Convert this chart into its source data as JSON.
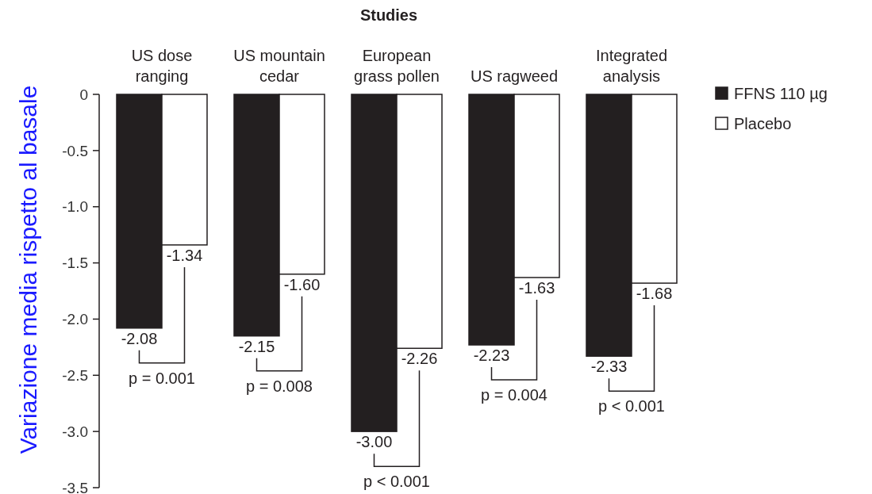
{
  "chart_data": {
    "type": "bar",
    "title": "Studies",
    "ylabel": "Variazione media rispetto al basale",
    "categories": [
      "US dose ranging",
      "US mountain cedar",
      "European grass pollen",
      "US ragweed",
      "Integrated analysis"
    ],
    "series": [
      {
        "name": "FFNS 110 µg",
        "color": "#231f20",
        "values": [
          -2.08,
          -2.15,
          -3.0,
          -2.23,
          -2.33
        ],
        "value_labels": [
          "-2.08",
          "-2.15",
          "-3.00",
          "-2.23",
          "-2.33"
        ]
      },
      {
        "name": "Placebo",
        "color": "#ffffff",
        "values": [
          -1.34,
          -1.6,
          -2.26,
          -1.63,
          -1.68
        ],
        "value_labels": [
          "-1.34",
          "-1.60",
          "-2.26",
          "-1.63",
          "-1.68"
        ]
      }
    ],
    "ylim": [
      -3.5,
      0
    ],
    "yticks": [
      0,
      {
        "value": -0.5,
        "label": "-0.5"
      },
      {
        "value": -1,
        "label": "-1.0"
      },
      {
        "value": -1.5,
        "label": "-1.5"
      },
      {
        "value": -2,
        "label": "-2.0"
      },
      {
        "value": -2.5,
        "label": "-2.5"
      },
      {
        "value": -3,
        "label": "-3.0"
      },
      {
        "value": -3.5,
        "label": "-3.5"
      }
    ],
    "grid": false,
    "legend": "top right",
    "annotations": [
      "p = 0.001",
      "p = 0.008",
      "p < 0.001",
      "p = 0.004",
      "p < 0.001"
    ]
  }
}
